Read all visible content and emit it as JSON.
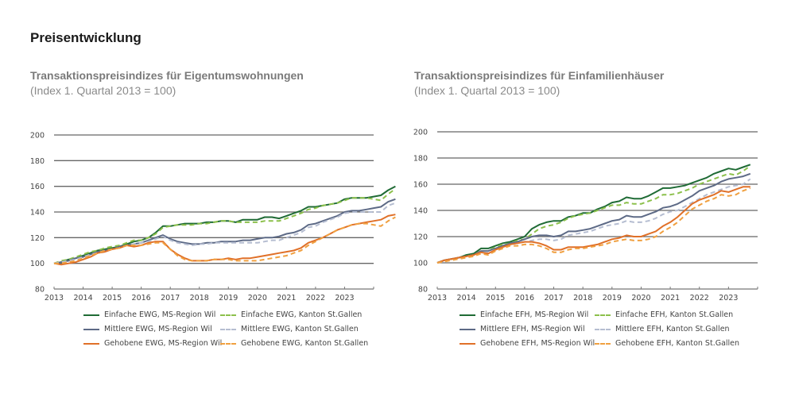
{
  "page": {
    "title": "Preisentwicklung"
  },
  "colors": {
    "einfach_region": "#1f6b35",
    "einfach_kanton": "#8cc04b",
    "mittlere_region": "#5d6a86",
    "mittlere_kanton": "#b5bdd1",
    "gehobene_region": "#e07028",
    "gehobene_kanton": "#f0a040",
    "grid": "#666666"
  },
  "chart_data": [
    {
      "type": "line",
      "title": "Transaktionspreisindizes für Eigentumswohnungen",
      "subtitle": "(Index 1. Quartal 2013 = 100)",
      "xlabel": "",
      "ylabel": "",
      "x_ticks": [
        "2013",
        "2014",
        "2015",
        "2016",
        "2017",
        "2018",
        "2019",
        "2020",
        "2021",
        "2022",
        "2023"
      ],
      "y_ticks": [
        80,
        100,
        120,
        140,
        160,
        180,
        200
      ],
      "ylim": [
        80,
        200
      ],
      "xlim": [
        2013,
        2024
      ],
      "grid": true,
      "legend_position": "bottom",
      "x_start": 2013.0,
      "x_step": 0.25,
      "series": [
        {
          "name": "Einfache EWG, MS-Region Wil",
          "style": "solid",
          "color_key": "einfach_region",
          "values": [
            100,
            101,
            103,
            104,
            106,
            108,
            110,
            111,
            112,
            113,
            115,
            117,
            118,
            120,
            124,
            129,
            129,
            130,
            131,
            131,
            131,
            132,
            132,
            133,
            133,
            132,
            134,
            134,
            134,
            136,
            136,
            135,
            137,
            139,
            141,
            144,
            144,
            145,
            146,
            147,
            150,
            151,
            151,
            151,
            152,
            153,
            157,
            160
          ]
        },
        {
          "name": "Einfache EWG, Kanton St.Gallen",
          "style": "dashed",
          "color_key": "einfach_kanton",
          "values": [
            100,
            102,
            103,
            105,
            107,
            109,
            110,
            112,
            113,
            114,
            116,
            118,
            118,
            120,
            123,
            128,
            129,
            130,
            130,
            130,
            131,
            131,
            132,
            133,
            133,
            132,
            132,
            132,
            132,
            133,
            133,
            133,
            135,
            137,
            139,
            142,
            143,
            145,
            146,
            147,
            149,
            151,
            151,
            151,
            150,
            149,
            154,
            158
          ]
        },
        {
          "name": "Mittlere EWG, MS-Region Wil",
          "style": "solid",
          "color_key": "mittlere_region",
          "values": [
            100,
            101,
            102,
            104,
            105,
            107,
            109,
            110,
            111,
            113,
            114,
            115,
            116,
            118,
            120,
            122,
            119,
            117,
            116,
            115,
            115,
            116,
            116,
            117,
            117,
            117,
            118,
            118,
            119,
            120,
            120,
            121,
            123,
            124,
            126,
            130,
            131,
            133,
            135,
            137,
            140,
            141,
            141,
            142,
            143,
            144,
            148,
            150
          ]
        },
        {
          "name": "Mittlere EWG, Kanton St.Gallen",
          "style": "dashed",
          "color_key": "mittlere_kanton",
          "values": [
            100,
            101,
            102,
            103,
            105,
            107,
            108,
            110,
            111,
            112,
            114,
            115,
            116,
            117,
            119,
            121,
            118,
            116,
            115,
            114,
            115,
            115,
            116,
            116,
            116,
            116,
            116,
            116,
            116,
            117,
            118,
            118,
            120,
            122,
            124,
            128,
            129,
            132,
            134,
            136,
            139,
            140,
            140,
            140,
            140,
            140,
            145,
            147
          ]
        },
        {
          "name": "Gehobene EWG, MS-Region Wil",
          "style": "solid",
          "color_key": "gehobene_region",
          "values": [
            100,
            99,
            100,
            101,
            103,
            105,
            108,
            109,
            111,
            112,
            114,
            113,
            114,
            116,
            117,
            117,
            111,
            107,
            104,
            102,
            102,
            102,
            103,
            103,
            104,
            103,
            104,
            104,
            105,
            106,
            107,
            108,
            109,
            110,
            112,
            116,
            118,
            120,
            123,
            126,
            128,
            130,
            131,
            132,
            133,
            134,
            137,
            138
          ]
        },
        {
          "name": "Gehobene EWG, Kanton St.Gallen",
          "style": "dashed",
          "color_key": "gehobene_kanton",
          "values": [
            100,
            100,
            101,
            102,
            104,
            106,
            108,
            110,
            111,
            112,
            114,
            114,
            114,
            115,
            116,
            116,
            111,
            106,
            103,
            102,
            102,
            102,
            103,
            103,
            103,
            102,
            102,
            102,
            102,
            103,
            104,
            105,
            106,
            108,
            110,
            114,
            117,
            120,
            123,
            126,
            128,
            130,
            131,
            131,
            130,
            129,
            133,
            136
          ]
        }
      ]
    },
    {
      "type": "line",
      "title": "Transaktionspreisindizes für Einfamilienhäuser",
      "subtitle": "(Index 1. Quartal 2013 = 100)",
      "xlabel": "",
      "ylabel": "",
      "x_ticks": [
        "2013",
        "2014",
        "2015",
        "2016",
        "2017",
        "2018",
        "2019",
        "2020",
        "2021",
        "2022",
        "2023"
      ],
      "y_ticks": [
        80,
        100,
        120,
        140,
        160,
        180,
        200
      ],
      "ylim": [
        80,
        200
      ],
      "xlim": [
        2013,
        2024
      ],
      "grid": true,
      "legend_position": "bottom",
      "x_start": 2013.0,
      "x_step": 0.25,
      "series": [
        {
          "name": "Einfache EFH, MS-Region Wil",
          "style": "solid",
          "color_key": "einfach_region",
          "values": [
            100,
            102,
            103,
            104,
            106,
            107,
            111,
            111,
            113,
            115,
            116,
            118,
            120,
            126,
            129,
            131,
            132,
            132,
            135,
            136,
            138,
            138,
            141,
            143,
            146,
            147,
            150,
            149,
            149,
            151,
            154,
            157,
            157,
            158,
            159,
            161,
            163,
            165,
            168,
            170,
            172,
            171,
            173,
            175
          ]
        },
        {
          "name": "Einfache EFH, Kanton St.Gallen",
          "style": "dashed",
          "color_key": "einfach_kanton",
          "values": [
            100,
            102,
            103,
            104,
            105,
            106,
            109,
            109,
            112,
            114,
            115,
            117,
            118,
            122,
            126,
            128,
            129,
            131,
            134,
            136,
            137,
            138,
            140,
            142,
            144,
            144,
            146,
            145,
            145,
            147,
            149,
            152,
            152,
            153,
            155,
            157,
            160,
            162,
            164,
            166,
            168,
            167,
            170,
            174
          ]
        },
        {
          "name": "Mittlere EFH, MS-Region Wil",
          "style": "solid",
          "color_key": "mittlere_region",
          "values": [
            100,
            102,
            103,
            104,
            105,
            106,
            109,
            109,
            111,
            113,
            115,
            116,
            118,
            120,
            121,
            121,
            120,
            121,
            124,
            124,
            125,
            126,
            128,
            130,
            132,
            133,
            136,
            135,
            135,
            137,
            139,
            142,
            143,
            145,
            148,
            151,
            155,
            157,
            159,
            162,
            164,
            165,
            166,
            168
          ]
        },
        {
          "name": "Mittlere EFH, Kanton St.Gallen",
          "style": "dashed",
          "color_key": "mittlere_kanton",
          "values": [
            100,
            102,
            103,
            104,
            105,
            106,
            108,
            108,
            110,
            112,
            114,
            115,
            116,
            117,
            118,
            118,
            117,
            118,
            121,
            122,
            123,
            124,
            126,
            128,
            129,
            130,
            132,
            131,
            131,
            132,
            134,
            137,
            139,
            140,
            143,
            146,
            149,
            152,
            154,
            156,
            158,
            159,
            160,
            164
          ]
        },
        {
          "name": "Gehobene EFH, MS-Region Wil",
          "style": "solid",
          "color_key": "gehobene_region",
          "values": [
            100,
            102,
            103,
            104,
            105,
            106,
            108,
            107,
            110,
            112,
            114,
            115,
            116,
            116,
            115,
            113,
            110,
            110,
            112,
            112,
            112,
            113,
            114,
            116,
            118,
            119,
            121,
            120,
            120,
            122,
            124,
            128,
            131,
            135,
            140,
            145,
            148,
            150,
            152,
            155,
            154,
            156,
            158,
            158
          ]
        },
        {
          "name": "Gehobene EFH, Kanton St.Gallen",
          "style": "dashed",
          "color_key": "gehobene_kanton",
          "values": [
            100,
            101,
            102,
            103,
            104,
            105,
            107,
            106,
            109,
            111,
            113,
            113,
            114,
            114,
            113,
            111,
            108,
            108,
            110,
            111,
            111,
            112,
            113,
            114,
            116,
            117,
            118,
            117,
            117,
            118,
            120,
            124,
            127,
            131,
            136,
            141,
            144,
            147,
            149,
            152,
            151,
            152,
            155,
            157
          ]
        }
      ]
    }
  ]
}
